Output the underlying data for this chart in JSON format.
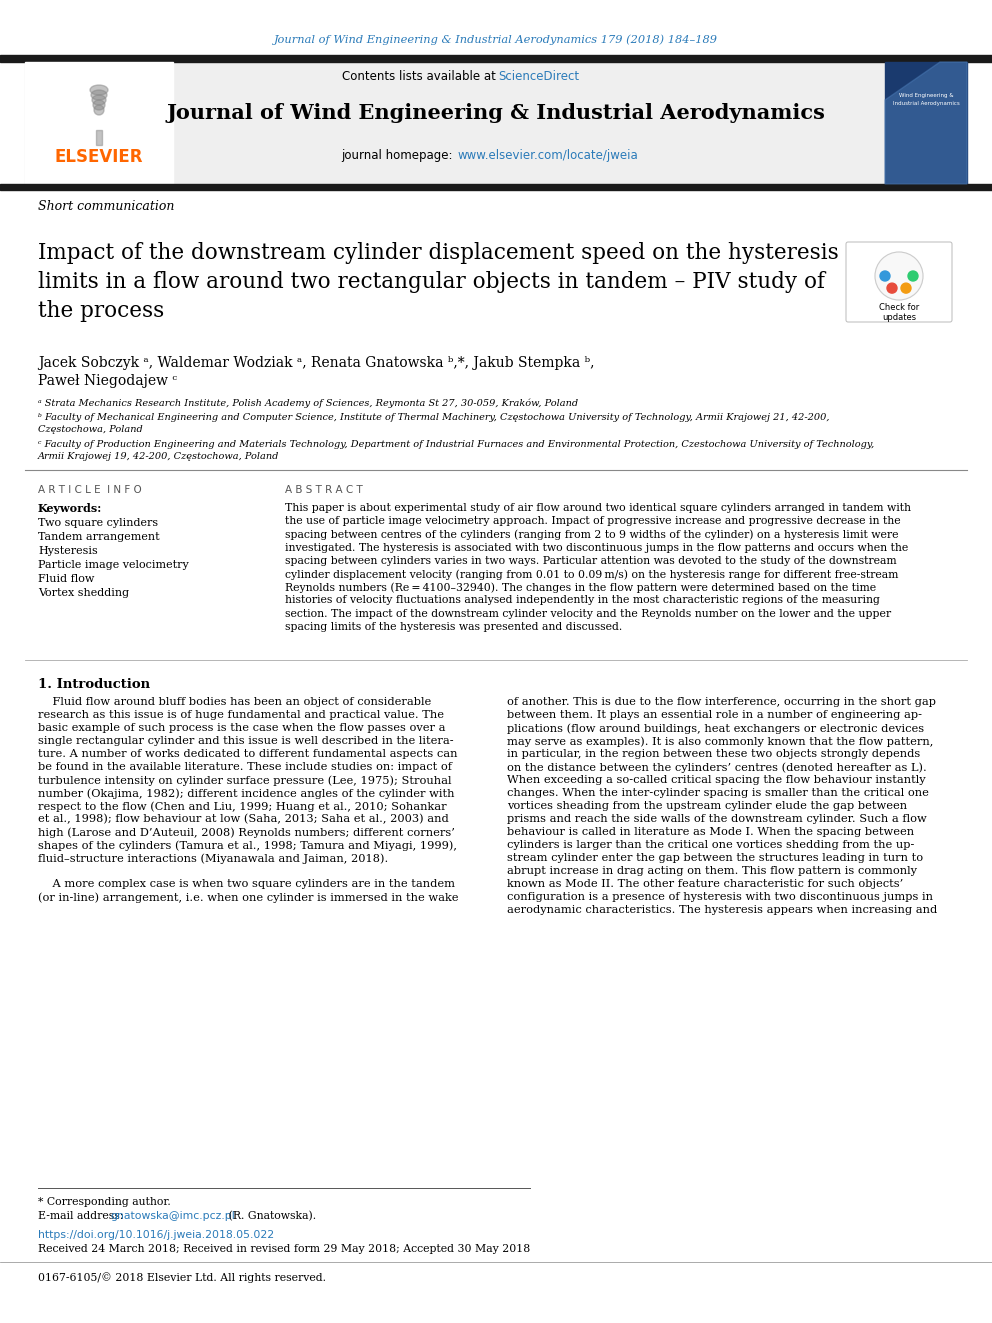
{
  "journal_ref": "Journal of Wind Engineering & Industrial Aerodynamics 179 (2018) 184–189",
  "journal_title": "Journal of Wind Engineering & Industrial Aerodynamics",
  "contents_text": "Contents lists available at",
  "science_direct": "ScienceDirect",
  "homepage_text": "journal homepage: ",
  "homepage_url": "www.elsevier.com/locate/jweia",
  "article_type": "Short communication",
  "paper_title": "Impact of the downstream cylinder displacement speed on the hysteresis\nlimits in a flow around two rectangular objects in tandem – PIV study of\nthe process",
  "authors_line1": "Jacek Sobczyk ᵃ, Waldemar Wodziak ᵃ, Renata Gnatowska ᵇ,*, Jakub Stempka ᵇ,",
  "authors_line2": "Paweł Niegodajew ᶜ",
  "affil_a": "ᵃ Strata Mechanics Research Institute, Polish Academy of Sciences, Reymonta St 27, 30-059, Kraków, Poland",
  "affil_b1": "ᵇ Faculty of Mechanical Engineering and Computer Science, Institute of Thermal Machinery, Częstochowa University of Technology, Armii Krajowej 21, 42-200,",
  "affil_b2": "Częstochowa, Poland",
  "affil_c1": "ᶜ Faculty of Production Engineering and Materials Technology, Department of Industrial Furnaces and Environmental Protection, Czestochowa University of Technology,",
  "affil_c2": "Armii Krajowej 19, 42-200, Częstochowa, Poland",
  "keywords_title": "A R T I C L E  I N F O",
  "keywords_label": "Keywords:",
  "keywords": [
    "Two square cylinders",
    "Tandem arrangement",
    "Hysteresis",
    "Particle image velocimetry",
    "Fluid flow",
    "Vortex shedding"
  ],
  "abstract_title": "A B S T R A C T",
  "abstract_lines": [
    "This paper is about experimental study of air flow around two identical square cylinders arranged in tandem with",
    "the use of particle image velocimetry approach. Impact of progressive increase and progressive decrease in the",
    "spacing between centres of the cylinders (ranging from 2 to 9 widths of the cylinder) on a hysteresis limit were",
    "investigated. The hysteresis is associated with two discontinuous jumps in the flow patterns and occurs when the",
    "spacing between cylinders varies in two ways. Particular attention was devoted to the study of the downstream",
    "cylinder displacement velocity (ranging from 0.01 to 0.09 m/s) on the hysteresis range for different free-stream",
    "Reynolds numbers (Re = 4100–32940). The changes in the flow pattern were determined based on the time",
    "histories of velocity fluctuations analysed independently in the most characteristic regions of the measuring",
    "section. The impact of the downstream cylinder velocity and the Reynolds number on the lower and the upper",
    "spacing limits of the hysteresis was presented and discussed."
  ],
  "intro_title": "1. Introduction",
  "intro_col1_lines": [
    "    Fluid flow around bluff bodies has been an object of considerable",
    "research as this issue is of huge fundamental and practical value. The",
    "basic example of such process is the case when the flow passes over a",
    "single rectangular cylinder and this issue is well described in the litera-",
    "ture. A number of works dedicated to different fundamental aspects can",
    "be found in the available literature. These include studies on: impact of",
    "turbulence intensity on cylinder surface pressure (Lee, 1975); Strouhal",
    "number (Okajima, 1982); different incidence angles of the cylinder with",
    "respect to the flow (Chen and Liu, 1999; Huang et al., 2010; Sohankar",
    "et al., 1998); flow behaviour at low (Saha, 2013; Saha et al., 2003) and",
    "high (Larose and D’Auteuil, 2008) Reynolds numbers; different corners’",
    "shapes of the cylinders (Tamura et al., 1998; Tamura and Miyagi, 1999),",
    "fluid–structure interactions (Miyanawala and Jaiman, 2018).",
    "",
    "    A more complex case is when two square cylinders are in the tandem",
    "(or in-line) arrangement, i.e. when one cylinder is immersed in the wake"
  ],
  "intro_col2_lines": [
    "of another. This is due to the flow interference, occurring in the short gap",
    "between them. It plays an essential role in a number of engineering ap-",
    "plications (flow around buildings, heat exchangers or electronic devices",
    "may serve as examples). It is also commonly known that the flow pattern,",
    "in particular, in the region between these two objects strongly depends",
    "on the distance between the cylinders’ centres (denoted hereafter as L).",
    "When exceeding a so-called critical spacing the flow behaviour instantly",
    "changes. When the inter-cylinder spacing is smaller than the critical one",
    "vortices sheading from the upstream cylinder elude the gap between",
    "prisms and reach the side walls of the downstream cylinder. Such a flow",
    "behaviour is called in literature as Mode I. When the spacing between",
    "cylinders is larger than the critical one vortices shedding from the up-",
    "stream cylinder enter the gap between the structures leading in turn to",
    "abrupt increase in drag acting on them. This flow pattern is commonly",
    "known as Mode II. The other feature characteristic for such objects’",
    "configuration is a presence of hysteresis with two discontinuous jumps in",
    "aerodynamic characteristics. The hysteresis appears when increasing and"
  ],
  "footnote_corresponding": "* Corresponding author.",
  "footnote_email_pre": "E-mail address: ",
  "footnote_email_link": "gnatowska@imc.pcz.pl",
  "footnote_email_post": " (R. Gnatowska).",
  "footnote_doi": "https://doi.org/10.1016/j.jweia.2018.05.022",
  "footnote_received": "Received 24 March 2018; Received in revised form 29 May 2018; Accepted 30 May 2018",
  "footnote_issn": "0167-6105/© 2018 Elsevier Ltd. All rights reserved.",
  "elsevier_color": "#FF6600",
  "link_color": "#2B7BB9",
  "black_bar_color": "#1a1a1a"
}
